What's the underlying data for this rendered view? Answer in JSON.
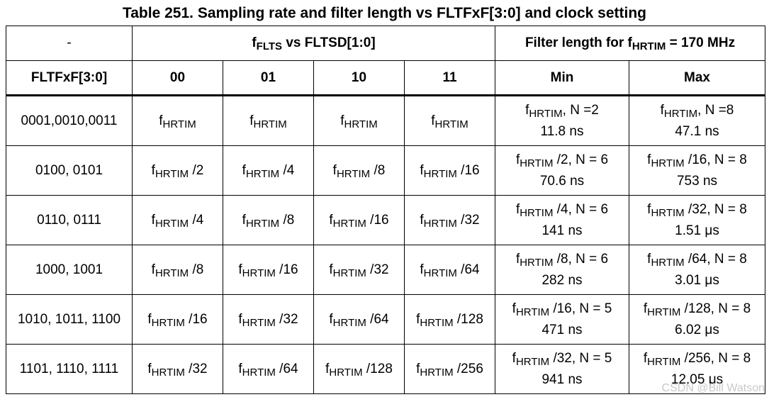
{
  "title": "Table 251. Sampling rate and filter length vs FLTFxF[3:0] and clock setting",
  "header": {
    "dash": "-",
    "group1": {
      "pre": "f",
      "sub": "FLTS",
      "post": " vs FLTSD[1:0]"
    },
    "group2": {
      "pre": "Filter length for f",
      "sub": "HRTIM",
      "post": " = 170 MHz"
    },
    "row2": [
      "FLTFxF[3:0]",
      "00",
      "01",
      "10",
      "11",
      "Min",
      "Max"
    ]
  },
  "rows": [
    {
      "key": "0001,0010,0011",
      "rates": [
        {
          "sub": "HRTIM",
          "suf": ""
        },
        {
          "sub": "HRTIM",
          "suf": ""
        },
        {
          "sub": "HRTIM",
          "suf": ""
        },
        {
          "sub": "HRTIM",
          "suf": ""
        }
      ],
      "min": {
        "sub": "HRTIM",
        "suf": ", N =2",
        "val": "11.8 ns"
      },
      "max": {
        "sub": "HRTIM",
        "suf": ", N =8",
        "val": "47.1 ns"
      }
    },
    {
      "key": "0100, 0101",
      "rates": [
        {
          "sub": "HRTIM",
          "suf": " /2"
        },
        {
          "sub": "HRTIM",
          "suf": " /4"
        },
        {
          "sub": "HRTIM",
          "suf": " /8"
        },
        {
          "sub": "HRTIM",
          "suf": " /16"
        }
      ],
      "min": {
        "sub": "HRTIM",
        "suf": " /2, N = 6",
        "val": "70.6 ns"
      },
      "max": {
        "sub": "HRTIM",
        "suf": " /16, N = 8",
        "val": "753 ns"
      }
    },
    {
      "key": "0110, 0111",
      "rates": [
        {
          "sub": "HRTIM",
          "suf": " /4"
        },
        {
          "sub": "HRTIM",
          "suf": " /8"
        },
        {
          "sub": "HRTIM",
          "suf": " /16"
        },
        {
          "sub": "HRTIM",
          "suf": " /32"
        }
      ],
      "min": {
        "sub": "HRTIM",
        "suf": " /4, N = 6",
        "val": "141 ns"
      },
      "max": {
        "sub": "HRTIM",
        "suf": " /32, N = 8",
        "val": "1.51 μs"
      }
    },
    {
      "key": "1000, 1001",
      "rates": [
        {
          "sub": "HRTIM",
          "suf": " /8"
        },
        {
          "sub": "HRTIM",
          "suf": " /16"
        },
        {
          "sub": "HRTIM",
          "suf": " /32"
        },
        {
          "sub": "HRTIM",
          "suf": " /64"
        }
      ],
      "min": {
        "sub": "HRTIM",
        "suf": " /8, N = 6",
        "val": "282 ns"
      },
      "max": {
        "sub": "HRTIM",
        "suf": " /64, N = 8",
        "val": "3.01 μs"
      }
    },
    {
      "key": "1010, 1011, 1100",
      "rates": [
        {
          "sub": "HRTIM",
          "suf": " /16"
        },
        {
          "sub": "HRTIM",
          "suf": " /32"
        },
        {
          "sub": "HRTIM",
          "suf": " /64"
        },
        {
          "sub": "HRTIM",
          "suf": " /128"
        }
      ],
      "min": {
        "sub": "HRTIM",
        "suf": " /16, N = 5",
        "val": "471 ns"
      },
      "max": {
        "sub": "HRTIM",
        "suf": " /128, N = 8",
        "val": "6.02 μs"
      }
    },
    {
      "key": "1101, 1110, 1111",
      "rates": [
        {
          "sub": "HRTIM",
          "suf": " /32"
        },
        {
          "sub": "HRTIM",
          "suf": " /64"
        },
        {
          "sub": "HRTIM",
          "suf": " /128"
        },
        {
          "sub": "HRTIM",
          "suf": " /256"
        }
      ],
      "min": {
        "sub": "HRTIM",
        "suf": " /32, N = 5",
        "val": "941 ns"
      },
      "max": {
        "sub": "HRTIM",
        "suf": " /256, N = 8",
        "val": "12.05 μs"
      }
    }
  ],
  "f": "f",
  "watermark": "CSDN @Bill Watson"
}
